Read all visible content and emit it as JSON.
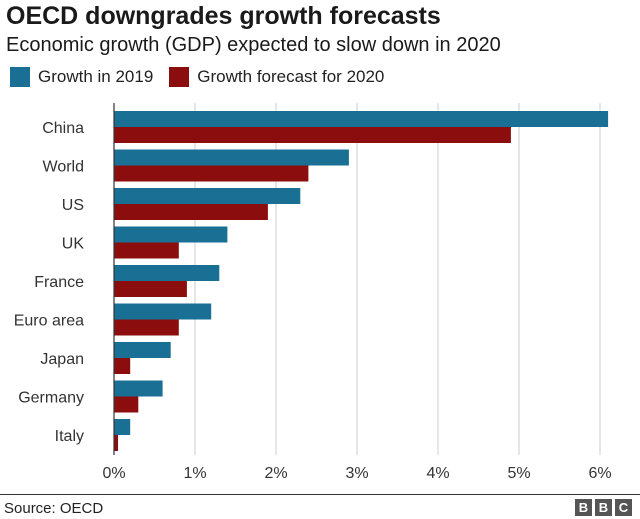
{
  "chart_data": {
    "type": "bar",
    "orientation": "horizontal",
    "title": "OECD downgrades growth forecasts",
    "subtitle": "Economic growth (GDP) expected to slow down in 2020",
    "categories": [
      "China",
      "World",
      "US",
      "UK",
      "France",
      "Euro area",
      "Japan",
      "Germany",
      "Italy"
    ],
    "series": [
      {
        "name": "Growth in 2019",
        "color": "#1a6f94",
        "values": [
          6.1,
          2.9,
          2.3,
          1.4,
          1.3,
          1.2,
          0.7,
          0.6,
          0.2
        ]
      },
      {
        "name": "Growth forecast for 2020",
        "color": "#8b0d0d",
        "values": [
          4.9,
          2.4,
          1.9,
          0.8,
          0.9,
          0.8,
          0.2,
          0.3,
          0.05
        ]
      }
    ],
    "xlim": [
      0,
      6.2
    ],
    "xticks": [
      0,
      1,
      2,
      3,
      4,
      5,
      6
    ],
    "xtick_labels": [
      "0%",
      "1%",
      "2%",
      "3%",
      "4%",
      "5%",
      "6%"
    ],
    "grid": true,
    "legend_position": "top-left"
  },
  "footer": {
    "source": "Source: OECD",
    "logo_letters": [
      "B",
      "B",
      "C"
    ]
  }
}
